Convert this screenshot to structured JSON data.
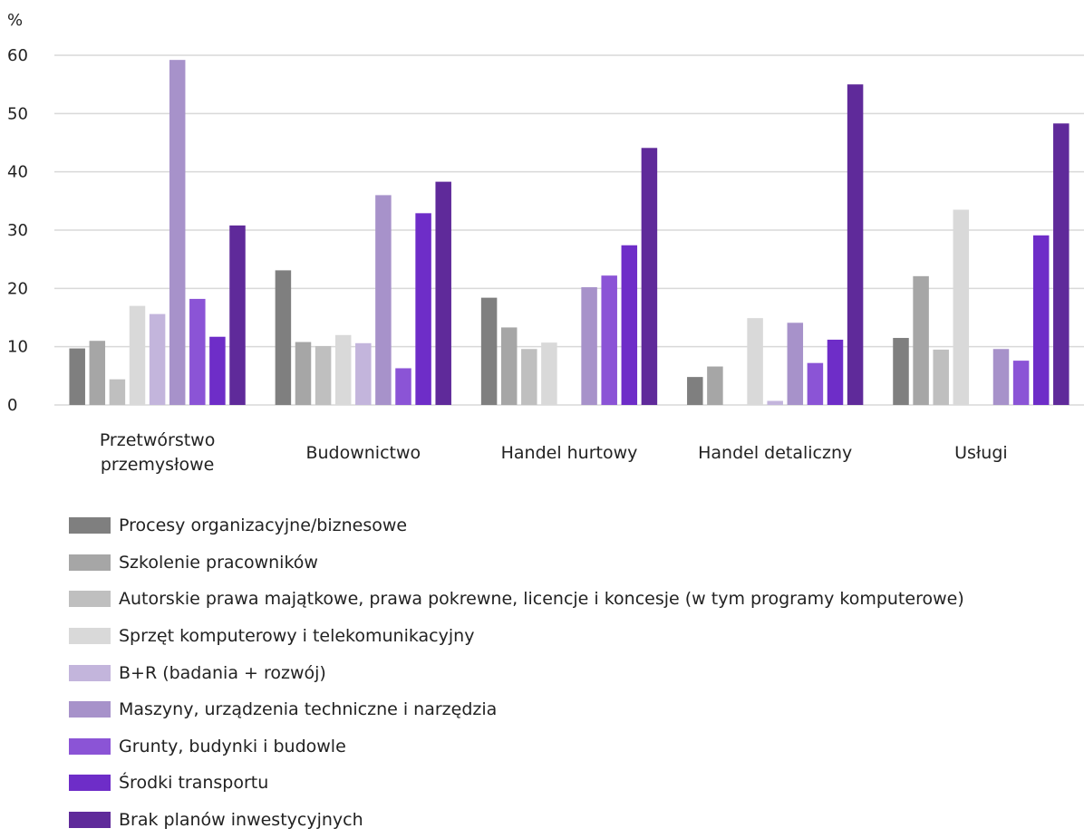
{
  "chart_data": {
    "type": "bar",
    "unit_label": "%",
    "ylim": [
      0,
      60
    ],
    "yticks": [
      0,
      10,
      20,
      30,
      40,
      50,
      60
    ],
    "grid": true,
    "legend_position": "bottom",
    "categories": [
      [
        "Przetwórstwo",
        "przemysłowe"
      ],
      [
        "Budownictwo"
      ],
      [
        "Handel hurtowy"
      ],
      [
        "Handel detaliczny"
      ],
      [
        "Usługi"
      ]
    ],
    "series": [
      {
        "name": "Procesy organizacyjne/biznesowe",
        "color": "#7f7f7f",
        "values": [
          9.7,
          23.1,
          18.4,
          4.8,
          11.5
        ]
      },
      {
        "name": "Szkolenie pracowników",
        "color": "#a6a6a6",
        "values": [
          11.0,
          10.8,
          13.3,
          6.6,
          22.1
        ]
      },
      {
        "name": "Autorskie prawa majątkowe, prawa pokrewne, licencje i koncesje (w tym programy komputerowe)",
        "color": "#bfbfbf",
        "values": [
          4.4,
          10.1,
          9.6,
          0,
          9.5
        ]
      },
      {
        "name": "Sprzęt komputerowy i telekomunikacyjny",
        "color": "#d9d9d9",
        "values": [
          17.0,
          12.0,
          10.7,
          14.9,
          33.5
        ]
      },
      {
        "name": "B+R (badania + rozwój)",
        "color": "#c3b5dc",
        "values": [
          15.6,
          10.6,
          0,
          0.7,
          0
        ]
      },
      {
        "name": "Maszyny, urządzenia techniczne i narzędzia",
        "color": "#a792ca",
        "values": [
          59.2,
          36.0,
          20.2,
          14.1,
          9.6
        ]
      },
      {
        "name": "Grunty, budynki i budowle",
        "color": "#8b54d6",
        "values": [
          18.2,
          6.3,
          22.2,
          7.2,
          7.6
        ]
      },
      {
        "name": "Środki transportu",
        "color": "#6e2dc8",
        "values": [
          11.7,
          32.9,
          27.4,
          11.2,
          29.1
        ]
      },
      {
        "name": "Brak planów inwestycyjnych",
        "color": "#5f2a9a",
        "values": [
          30.8,
          38.3,
          44.1,
          55.0,
          48.3
        ]
      }
    ]
  }
}
